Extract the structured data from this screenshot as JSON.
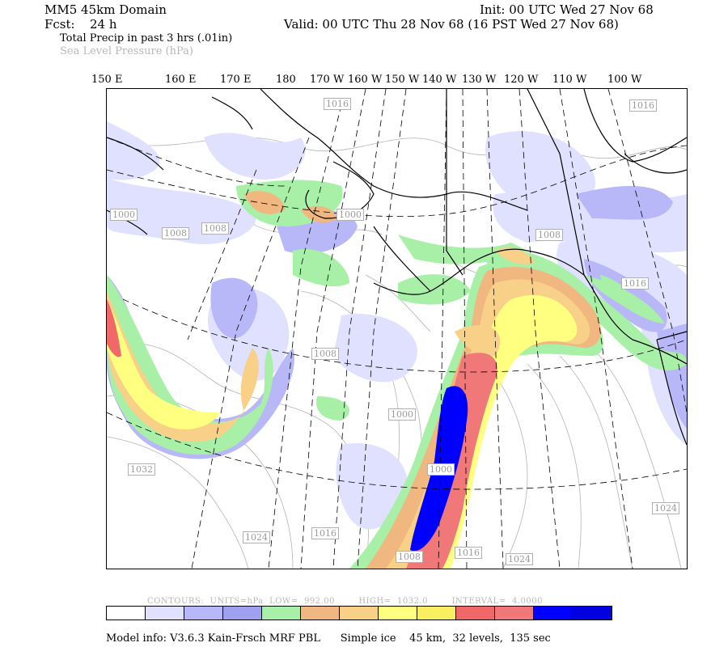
{
  "header": {
    "domain_title": "MM5 45km Domain",
    "init_time": "Init: 00 UTC Wed 27 Nov 68",
    "fcst_label": "Fcst:",
    "fcst_value": "24 h",
    "valid_time": "Valid: 00 UTC Thu 28 Nov 68 (16 PST Wed 27 Nov 68)",
    "field_primary": "Total Precip in past 3 hrs (.01in)",
    "field_secondary": "Sea Level Pressure (hPa)"
  },
  "longitude_labels": [
    "150 E",
    "160 E",
    "170 E",
    "180",
    "170 W",
    "160 W",
    "150 W",
    "140 W",
    "130 W",
    "120 W",
    "110 W",
    "100 W"
  ],
  "isobar_labels": [
    "1016",
    "1016",
    "1000",
    "1008",
    "1008",
    "1000",
    "1008",
    "1016",
    "1008",
    "1000",
    "1000",
    "1032",
    "1024",
    "1016",
    "1008",
    "1016",
    "1024",
    "1024"
  ],
  "contour_info": {
    "contours": "CONTOURS:",
    "units": "UNITS=hPa",
    "low": "LOW=",
    "low_value": "992.00",
    "high": "HIGH=",
    "high_value": "1032.0",
    "interval": "INTERVAL=",
    "interval_value": "4.0000"
  },
  "colorbar_colors": [
    "#ffffff",
    "#e0e0ff",
    "#b8b8f8",
    "#a0a0f0",
    "#a8f0a8",
    "#f0b880",
    "#f8d088",
    "#ffff80",
    "#f8f060",
    "#f06868",
    "#f07878",
    "#0000ff",
    "#0000e0"
  ],
  "model_info": "Model info: V3.6.3 Kain-Frsch MRF PBL      Simple ice    45 km,  32 levels,  135 sec"
}
